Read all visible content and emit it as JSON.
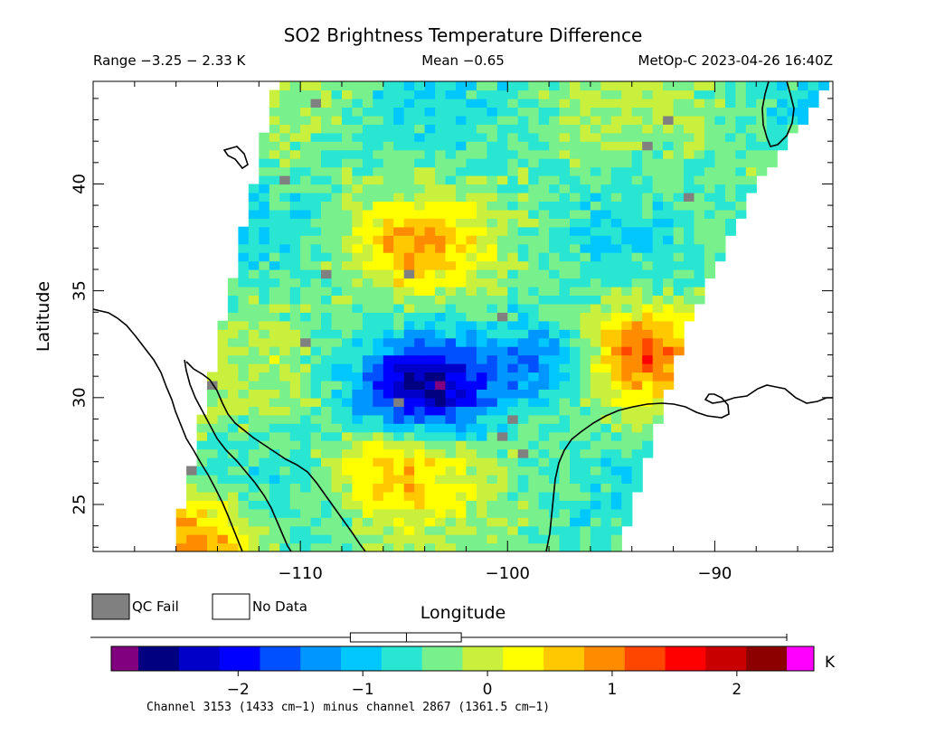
{
  "chart_data": {
    "type": "heatmap",
    "title": "SO2 Brightness Temperature Difference",
    "header_range": "Range −3.25 − 2.33 K",
    "header_mean": "Mean −0.65",
    "header_source": "MetOp-C 2023-04-26 16:40Z",
    "xlabel": "Longitude",
    "ylabel": "Latitude",
    "xlim": [
      -120,
      -84.3
    ],
    "ylim": [
      22.8,
      44.8
    ],
    "x_ticks": [
      -110,
      -100,
      -90
    ],
    "x_tick_labels": [
      "−110",
      "−100",
      "−90"
    ],
    "y_ticks": [
      25,
      30,
      35,
      40
    ],
    "y_tick_labels": [
      "25",
      "30",
      "35",
      "40"
    ],
    "grid": false,
    "legend": [
      {
        "label": "QC Fail",
        "color": "#808080"
      },
      {
        "label": "No Data",
        "color": "#ffffff"
      }
    ],
    "colorbar": {
      "range": [
        -2.8,
        2.4
      ],
      "ticks": [
        -2,
        -1,
        0,
        1,
        2
      ],
      "tick_labels": [
        "−2",
        "−1",
        "0",
        "1",
        "2"
      ],
      "unit": "K",
      "under_color": "#800080",
      "over_color": "#ff00ff",
      "colors": [
        "#000080",
        "#0000c8",
        "#0000ff",
        "#0050ff",
        "#0096ff",
        "#00c8ff",
        "#28e6d2",
        "#78f08c",
        "#c8f03c",
        "#ffff00",
        "#ffc800",
        "#ff8c00",
        "#ff4600",
        "#ff0000",
        "#c80000",
        "#8c0000"
      ],
      "mean": -0.65,
      "whisker": [
        -3.25,
        2.33
      ],
      "box": [
        -1.1,
        -0.21
      ],
      "caption": "Channel 3153 (1433 cm−1) minus channel 2867 (1361.5 cm−1)"
    },
    "swath_edges": {
      "west": [
        [
          -111.2,
          44.8
        ],
        [
          -116.2,
          22.8
        ]
      ],
      "east": [
        [
          -84.3,
          44.8
        ],
        [
          -88.0,
          40.0
        ],
        [
          -91.5,
          33.0
        ],
        [
          -94.6,
          22.8
        ]
      ]
    },
    "field_features": [
      {
        "kind": "low",
        "lon": -104.0,
        "lat": 30.5,
        "value": -2.4
      },
      {
        "kind": "low",
        "lon": -97.0,
        "lat": 31.8,
        "value": -1.8
      },
      {
        "kind": "high",
        "lon": -94.0,
        "lat": 32.0,
        "value": 1.4
      },
      {
        "kind": "high",
        "lon": -115.0,
        "lat": 23.5,
        "value": 1.0
      },
      {
        "kind": "high",
        "lon": -104.5,
        "lat": 37.0,
        "value": 0.6
      },
      {
        "kind": "high",
        "lon": -105.5,
        "lat": 26.5,
        "value": 0.4
      }
    ]
  }
}
